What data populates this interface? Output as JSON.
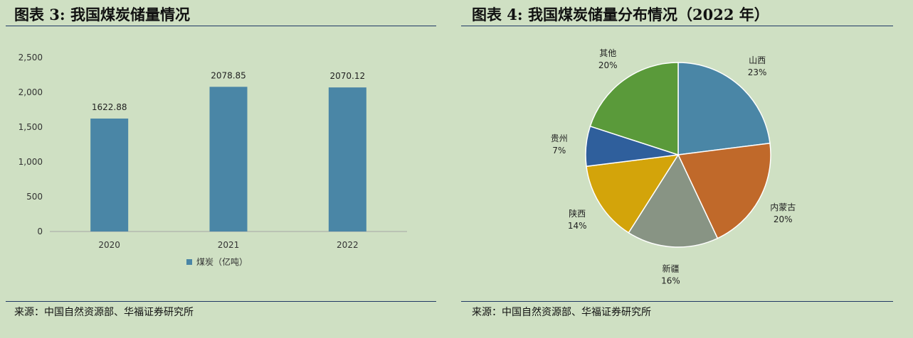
{
  "figures": [
    {
      "title": "图表 3:  我国煤炭储量情况",
      "source": "来源：中国自然资源部、华福证券研究所"
    },
    {
      "title": "图表 4:  我国煤炭储量分布情况（2022 年）",
      "source": "来源：中国自然资源部、华福证券研究所"
    }
  ],
  "chart_data": [
    {
      "type": "bar",
      "categories": [
        "2020",
        "2021",
        "2022"
      ],
      "series": [
        {
          "name": "煤炭（亿吨）",
          "values": [
            1622.88,
            2078.85,
            2070.12
          ],
          "labels": [
            "1622.88",
            "2078.85",
            "2070.12"
          ]
        }
      ],
      "yticks": [
        "0",
        "500",
        "1,000",
        "1,500",
        "2,000",
        "2,500"
      ],
      "ytick_values": [
        0,
        500,
        1000,
        1500,
        2000,
        2500
      ],
      "ylim": [
        0,
        2500
      ],
      "legend_position": "bottom",
      "bar_color": "#4a86a6"
    },
    {
      "type": "pie",
      "slices": [
        {
          "label": "山西",
          "value": 23,
          "pct": "23%",
          "color": "#4a86a6"
        },
        {
          "label": "内蒙古",
          "value": 20,
          "pct": "20%",
          "color": "#c0692a"
        },
        {
          "label": "新疆",
          "value": 16,
          "pct": "16%",
          "color": "#889484"
        },
        {
          "label": "陕西",
          "value": 14,
          "pct": "14%",
          "color": "#d3a40a"
        },
        {
          "label": "贵州",
          "value": 7,
          "pct": "7%",
          "color": "#2f5f9c"
        },
        {
          "label": "其他",
          "value": 20,
          "pct": "20%",
          "color": "#5a9a3a"
        }
      ]
    }
  ]
}
